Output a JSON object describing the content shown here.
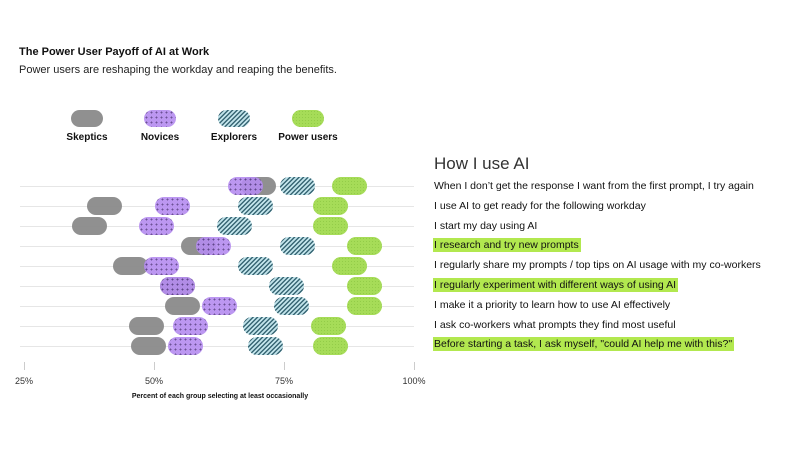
{
  "title": "The Power User Payoff of AI at Work",
  "subtitle": "Power users are reshaping the workday and reaping the benefits.",
  "legend": [
    {
      "key": "skeptic",
      "label": "Skeptics",
      "color": "#8a8a8a"
    },
    {
      "key": "novice",
      "label": "Novices",
      "color": "#b58cf0"
    },
    {
      "key": "explorer",
      "label": "Explorers",
      "color": "#2f5f6e"
    },
    {
      "key": "power",
      "label": "Power users",
      "color": "#a6dc58"
    }
  ],
  "panel": {
    "title": "How I use AI",
    "highlight_color": "#b2e84f"
  },
  "axis": {
    "ticks": [
      "25%",
      "50%",
      "75%",
      "100%"
    ],
    "xlabel": "Percent of each group selecting at least occasionally"
  },
  "chart_data": {
    "type": "scatter",
    "subtype": "dot-plot (pill markers)",
    "title": "The Power User Payoff of AI at Work",
    "subtitle": "Power users are reshaping the workday and reaping the benefits.",
    "xlabel": "Percent of each group selecting at least occasionally",
    "ylabel": "How I use AI",
    "xlim": [
      25,
      100
    ],
    "xticks": [
      25,
      50,
      75,
      100
    ],
    "grid": "horizontal row lines",
    "legend_position": "top",
    "series_names": [
      "Skeptics",
      "Novices",
      "Explorers",
      "Power users"
    ],
    "categories": [
      "When I don’t get the response I want from the first prompt, I try again",
      "I use AI to get ready for the following workday",
      "I start my day using AI",
      "I research and try new prompts",
      "I regularly share my prompts / top tips on AI usage with my co-workers",
      "I regularly experiment with different ways of using AI",
      "I make it a priority to learn how to use AI effectively",
      "I ask co-workers what prompts they find most useful",
      "Before starting a task, I ask myself, \"could AI help me with this?\""
    ],
    "highlighted": [
      false,
      false,
      false,
      true,
      false,
      true,
      false,
      false,
      true
    ],
    "series": [
      {
        "name": "Skeptics",
        "values": [
          70,
          40.5,
          37.5,
          58.5,
          45.5,
          54.5,
          55.5,
          48.5,
          49
        ]
      },
      {
        "name": "Novices",
        "values": [
          67.5,
          53.5,
          50.5,
          61.5,
          51.5,
          54.5,
          62.5,
          57,
          56
        ]
      },
      {
        "name": "Explorers",
        "values": [
          77.5,
          69.5,
          65.5,
          77.5,
          69.5,
          75.5,
          76.5,
          70.5,
          71.5
        ]
      },
      {
        "name": "Power users",
        "values": [
          87.5,
          84,
          84,
          90.5,
          87.5,
          90.5,
          90.5,
          83.5,
          84
        ]
      }
    ]
  }
}
